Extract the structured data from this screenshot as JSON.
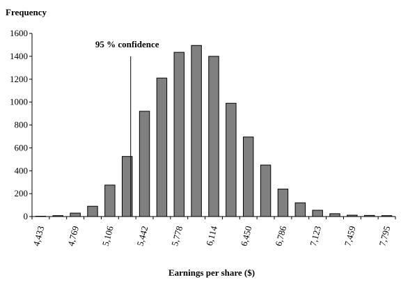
{
  "chart_data": {
    "type": "bar",
    "ylabel": "Frequency",
    "xlabel": "Earnings per share ($)",
    "ylim": [
      0,
      1600
    ],
    "y_ticks": [
      0,
      200,
      400,
      600,
      800,
      1000,
      1200,
      1400,
      1600
    ],
    "x_tick_labels": [
      "4,433",
      "4,769",
      "5,106",
      "5,442",
      "5,778",
      "6,114",
      "6,450",
      "6,786",
      "7,123",
      "7,459",
      "7,795"
    ],
    "values": [
      3,
      8,
      30,
      90,
      275,
      525,
      920,
      1210,
      1435,
      1495,
      1400,
      990,
      695,
      450,
      240,
      120,
      55,
      25,
      12,
      10,
      8
    ],
    "annotation": {
      "text": "95 %  confidence",
      "bar_index": 5,
      "top_value": 1400
    },
    "grid": false,
    "legend": "none"
  }
}
